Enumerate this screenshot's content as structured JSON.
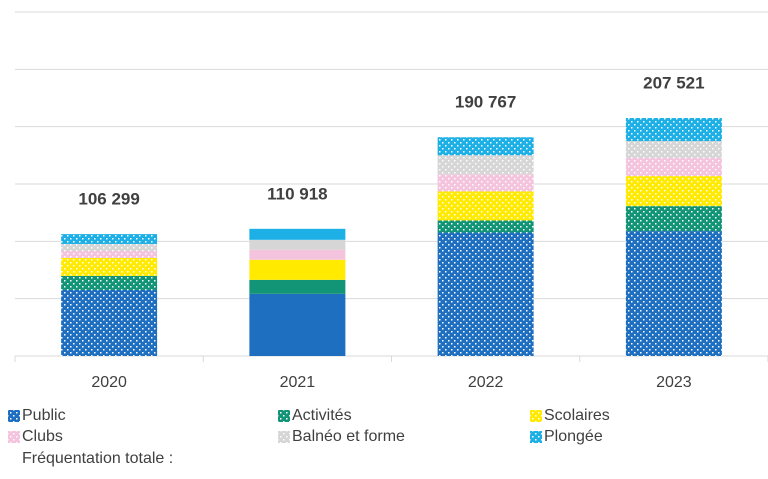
{
  "chart_data": {
    "type": "stacked_bar",
    "categories": [
      "2020",
      "2021",
      "2022",
      "2023"
    ],
    "series": [
      {
        "name": "Public",
        "color": "#1f6fc0",
        "values": [
          57600,
          54218,
          107667,
          108921
        ]
      },
      {
        "name": "Activités",
        "color": "#129476",
        "values": [
          12200,
          12200,
          10500,
          21800
        ]
      },
      {
        "name": "Scolaires",
        "color": "#ffea00",
        "values": [
          15700,
          17500,
          25300,
          26200
        ]
      },
      {
        "name": "Clubs",
        "color": "#f4c3dd",
        "values": [
          6100,
          8700,
          15000,
          15700
        ]
      },
      {
        "name": "Balnéo et forme",
        "color": "#d6d6d6",
        "values": [
          6100,
          8700,
          16600,
          14800
        ]
      },
      {
        "name": "Plongée",
        "color": "#1cb0e6",
        "values": [
          8599,
          9600,
          15700,
          20100
        ]
      }
    ],
    "patterned": [
      true,
      false,
      true,
      true
    ],
    "totals": [
      106299,
      110918,
      190767,
      207521
    ],
    "total_labels": [
      "106 299",
      "110 918",
      "190 767",
      "207 521"
    ],
    "totals_legend": "Fréquentation totale :",
    "ylim": [
      0,
      300000
    ],
    "yticks": [
      0,
      50000,
      100000,
      150000,
      200000,
      250000,
      300000
    ],
    "grid": true
  }
}
